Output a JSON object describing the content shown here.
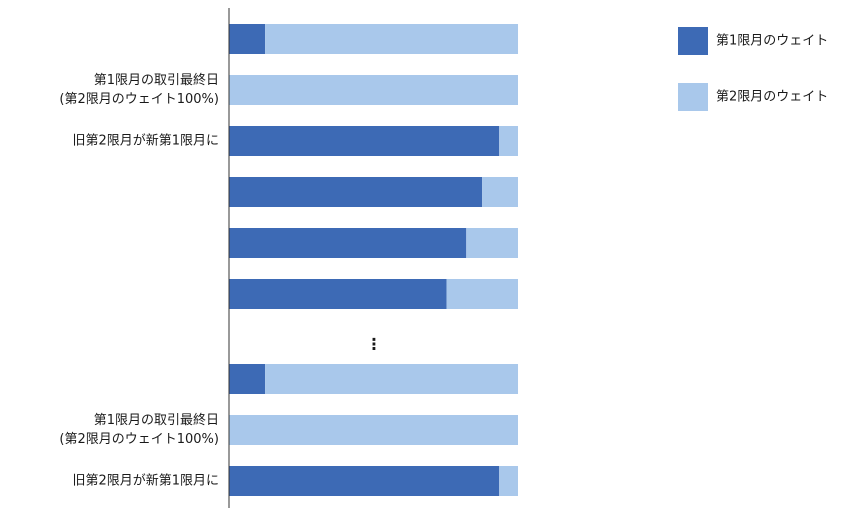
{
  "chart_data": {
    "type": "bar",
    "orientation": "horizontal",
    "stacked": true,
    "normalized": true,
    "xlim": [
      0,
      100
    ],
    "grid": false,
    "legend": "top-right",
    "categories": [
      "",
      "第1限月の取引最終日\n(第2限月のウェイト100%)",
      "旧第2限月が新第1限月に",
      "",
      "",
      "",
      "",
      "第1限月の取引最終日\n(第2限月のウェイト100%)",
      "旧第2限月が新第1限月に"
    ],
    "series": [
      {
        "name": "第1限月のウェイト",
        "color": "#3d6ab5",
        "values": [
          12.5,
          0,
          93.5,
          87.6,
          82.1,
          75.3,
          12.5,
          0,
          93.5
        ]
      },
      {
        "name": "第2限月のウェイト",
        "color": "#a9c8eb",
        "values": [
          87.5,
          100,
          6.5,
          12.4,
          17.9,
          24.7,
          87.5,
          100,
          6.5
        ]
      }
    ],
    "ellipsis_mark": "⋮"
  }
}
